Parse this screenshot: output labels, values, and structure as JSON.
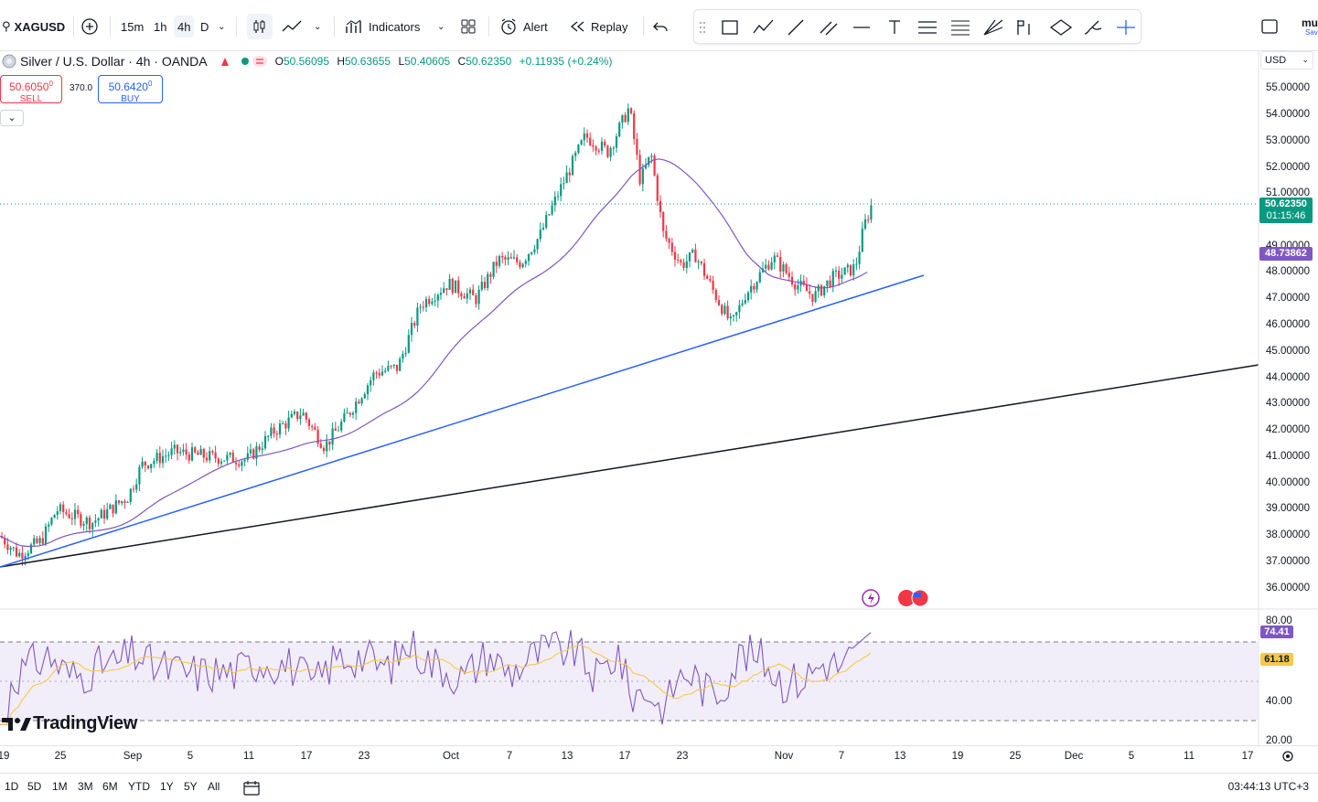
{
  "toolbar": {
    "symbol": "XAGUSD",
    "intervals": [
      "15m",
      "1h",
      "4h",
      "D"
    ],
    "active_interval": "4h",
    "indicators_label": "Indicators",
    "alert_label": "Alert",
    "replay_label": "Replay",
    "user_initials": "mu",
    "save_label": "Sav"
  },
  "legend": {
    "title": "Silver / U.S. Dollar · 4h · OANDA",
    "open_label": "O",
    "open": "50.56095",
    "high_label": "H",
    "high": "50.63655",
    "low_label": "L",
    "low": "50.40605",
    "close_label": "C",
    "close": "50.62350",
    "change": "+0.11935 (+0.24%)"
  },
  "trade": {
    "sell_price": "50.6050",
    "sell_super": "0",
    "sell_label": "SELL",
    "spread": "370.0",
    "buy_price": "50.6420",
    "buy_super": "0",
    "buy_label": "BUY"
  },
  "currency": "USD",
  "price_axis": [
    "55.00000",
    "54.00000",
    "53.00000",
    "52.00000",
    "51.00000",
    "49.00000",
    "48.00000",
    "47.00000",
    "46.00000",
    "45.00000",
    "44.00000",
    "43.00000",
    "42.00000",
    "41.00000",
    "40.00000",
    "39.00000",
    "38.00000",
    "37.00000",
    "36.00000"
  ],
  "current_price": {
    "price": "50.62350",
    "countdown": "01:15:46"
  },
  "ma_value": "48.73862",
  "rsi": {
    "axis": [
      "80.00",
      "40.00",
      "20.00"
    ],
    "value": "74.41",
    "ma_value": "61.18"
  },
  "time_axis": [
    "19",
    "25",
    "Sep",
    "5",
    "11",
    "17",
    "23",
    "Oct",
    "7",
    "13",
    "17",
    "23",
    "Nov",
    "7",
    "13",
    "19",
    "25",
    "Dec",
    "5",
    "11",
    "17"
  ],
  "ranges": [
    "1D",
    "5D",
    "1M",
    "3M",
    "6M",
    "YTD",
    "1Y",
    "5Y",
    "All"
  ],
  "clock": "03:44:13 UTC+3",
  "brand": "TradingView",
  "colors": {
    "up": "#089981",
    "down": "#f23645",
    "ma": "#7e57c2",
    "trend": "#2962ff"
  }
}
